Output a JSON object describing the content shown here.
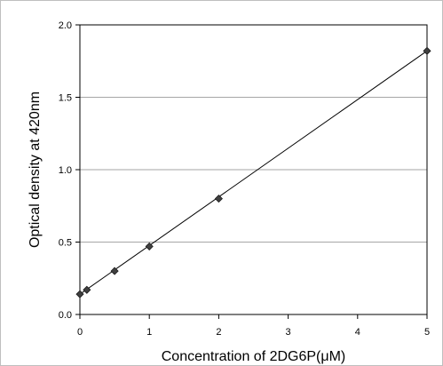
{
  "chart_data": {
    "type": "scatter",
    "xlabel": "Concentration of 2DG6P(μM)",
    "ylabel": "Optical density at 420nm",
    "x_ticks": [
      "0",
      "1",
      "2",
      "3",
      "4",
      "5"
    ],
    "y_ticks": [
      "0.0",
      "0.5",
      "1.0",
      "1.5",
      "2.0"
    ],
    "xlim": [
      0,
      5
    ],
    "ylim": [
      0,
      2
    ],
    "grid": "horizontal",
    "legend": "none",
    "series": [
      {
        "x": [
          0,
          0.1,
          0.5,
          1,
          2,
          5
        ],
        "y": [
          0.14,
          0.17,
          0.3,
          0.47,
          0.8,
          1.82
        ],
        "marker": "diamond",
        "color": "#404040"
      }
    ],
    "trendline": {
      "x": [
        0,
        5
      ],
      "y": [
        0.14,
        1.82
      ],
      "color": "#000000"
    }
  }
}
